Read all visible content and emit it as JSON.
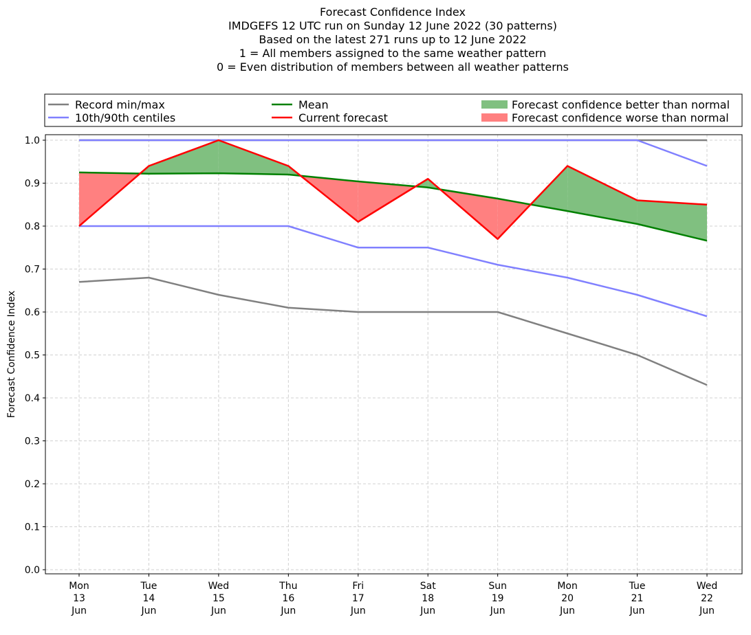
{
  "chart_data": {
    "type": "line",
    "title_lines": [
      "Forecast Confidence Index",
      "IMDGEFS 12 UTC run on Sunday 12 June 2022 (30 patterns)",
      "Based on the latest 271 runs up to 12 June 2022",
      "1 = All members assigned to the same weather pattern",
      "0 = Even distribution of members between all weather patterns"
    ],
    "ylabel": "Forecast Confidence Index",
    "xlabel": "",
    "ylim": [
      -0.01,
      1.01
    ],
    "yticks": [
      "0.0",
      "0.1",
      "0.2",
      "0.3",
      "0.4",
      "0.5",
      "0.6",
      "0.7",
      "0.8",
      "0.9",
      "1.0"
    ],
    "categories": [
      [
        "Mon",
        "13",
        "Jun"
      ],
      [
        "Tue",
        "14",
        "Jun"
      ],
      [
        "Wed",
        "15",
        "Jun"
      ],
      [
        "Thu",
        "16",
        "Jun"
      ],
      [
        "Fri",
        "17",
        "Jun"
      ],
      [
        "Sat",
        "18",
        "Jun"
      ],
      [
        "Sun",
        "19",
        "Jun"
      ],
      [
        "Mon",
        "20",
        "Jun"
      ],
      [
        "Tue",
        "21",
        "Jun"
      ],
      [
        "Wed",
        "22",
        "Jun"
      ]
    ],
    "grid": true,
    "legend_placement": "top, above plot, 3 columns",
    "series": [
      {
        "name": "Record min/max",
        "key": "record_max",
        "color": "#808080",
        "values": [
          1.0,
          1.0,
          1.0,
          1.0,
          1.0,
          1.0,
          1.0,
          1.0,
          1.0,
          1.0
        ]
      },
      {
        "name": "Record min/max",
        "key": "record_min",
        "color": "#808080",
        "values": [
          0.67,
          0.68,
          0.64,
          0.61,
          0.6,
          0.6,
          0.6,
          0.55,
          0.5,
          0.43
        ]
      },
      {
        "name": "10th/90th centiles",
        "key": "p90",
        "color": "#8080ff",
        "values": [
          1.0,
          1.0,
          1.0,
          1.0,
          1.0,
          1.0,
          1.0,
          1.0,
          1.0,
          0.94
        ]
      },
      {
        "name": "10th/90th centiles",
        "key": "p10",
        "color": "#8080ff",
        "values": [
          0.8,
          0.8,
          0.8,
          0.8,
          0.75,
          0.75,
          0.71,
          0.68,
          0.64,
          0.59
        ]
      },
      {
        "name": "Mean",
        "key": "mean",
        "color": "#008000",
        "values": [
          0.925,
          0.922,
          0.923,
          0.92,
          0.904,
          0.89,
          0.864,
          0.835,
          0.805,
          0.766
        ]
      },
      {
        "name": "Current forecast",
        "key": "current",
        "color": "#ff0000",
        "values": [
          0.8,
          0.94,
          1.0,
          0.94,
          0.81,
          0.91,
          0.77,
          0.94,
          0.86,
          0.85
        ]
      }
    ],
    "fills": [
      {
        "name": "Forecast confidence better than normal",
        "color": "#80c080"
      },
      {
        "name": "Forecast confidence worse than normal",
        "color": "#ff8080"
      }
    ],
    "legend": [
      {
        "label": "Record min/max",
        "type": "line",
        "color": "#808080"
      },
      {
        "label": "10th/90th centiles",
        "type": "line",
        "color": "#8080ff"
      },
      {
        "label": "Mean",
        "type": "line",
        "color": "#008000"
      },
      {
        "label": "Current forecast",
        "type": "line",
        "color": "#ff0000"
      },
      {
        "label": "Forecast confidence better than normal",
        "type": "patch",
        "color": "#80c080"
      },
      {
        "label": "Forecast confidence worse than normal",
        "type": "patch",
        "color": "#ff8080"
      }
    ]
  }
}
